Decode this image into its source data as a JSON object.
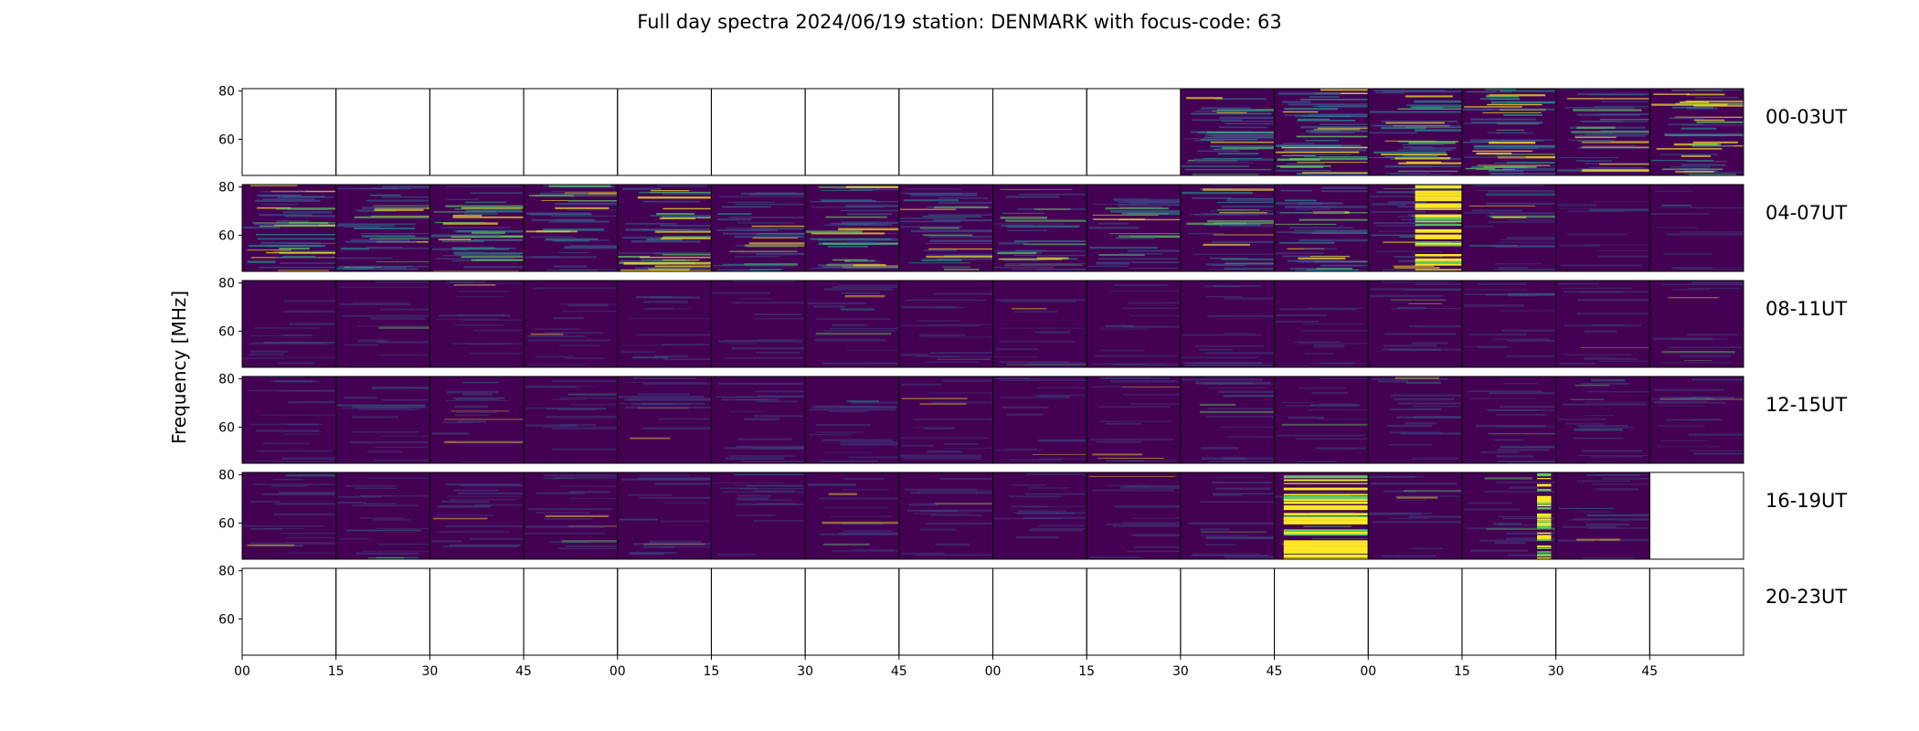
{
  "chart_data": {
    "type": "heatmap",
    "title": "Full day spectra 2024/06/19 station: DENMARK with focus-code: 63",
    "ylabel": "Frequency [MHz]",
    "xlabel": "",
    "ylim": [
      45,
      81
    ],
    "yticks": [
      60,
      80
    ],
    "xticks": [
      "00",
      "15",
      "30",
      "45",
      "00",
      "15",
      "30",
      "45",
      "00",
      "15",
      "30",
      "45",
      "00",
      "15",
      "30",
      "45"
    ],
    "colormap": [
      "#440154",
      "#3b528b",
      "#21918c",
      "#5ec962",
      "#fde725"
    ],
    "rows": [
      {
        "label": "00-03UT",
        "panels": [
          {
            "empty": true
          },
          {
            "empty": true
          },
          {
            "empty": true
          },
          {
            "empty": true
          },
          {
            "empty": true
          },
          {
            "empty": true
          },
          {
            "empty": true
          },
          {
            "empty": true
          },
          {
            "empty": true
          },
          {
            "empty": true
          },
          {
            "activity": 0.55
          },
          {
            "activity": 0.75
          },
          {
            "activity": 0.6
          },
          {
            "activity": 0.7
          },
          {
            "activity": 0.5
          },
          {
            "activity": 0.55
          }
        ]
      },
      {
        "label": "04-07UT",
        "panels": [
          {
            "activity": 0.6
          },
          {
            "activity": 0.5
          },
          {
            "activity": 0.55
          },
          {
            "activity": 0.5
          },
          {
            "activity": 0.6
          },
          {
            "activity": 0.45
          },
          {
            "activity": 0.55
          },
          {
            "activity": 0.45
          },
          {
            "activity": 0.45
          },
          {
            "activity": 0.4
          },
          {
            "activity": 0.45
          },
          {
            "activity": 0.55
          },
          {
            "activity": 0.35,
            "burst": [
              0.5,
              1.0
            ]
          },
          {
            "activity": 0.3
          },
          {
            "activity": 0.05
          },
          {
            "activity": 0.05
          }
        ]
      },
      {
        "label": "08-11UT",
        "panels": [
          {
            "activity": 0.1
          },
          {
            "activity": 0.1
          },
          {
            "activity": 0.12
          },
          {
            "activity": 0.1
          },
          {
            "activity": 0.1
          },
          {
            "activity": 0.1
          },
          {
            "activity": 0.15
          },
          {
            "activity": 0.12
          },
          {
            "activity": 0.1
          },
          {
            "activity": 0.1
          },
          {
            "activity": 0.12
          },
          {
            "activity": 0.12
          },
          {
            "activity": 0.12
          },
          {
            "activity": 0.12
          },
          {
            "activity": 0.12
          },
          {
            "activity": 0.1
          }
        ]
      },
      {
        "label": "12-15UT",
        "panels": [
          {
            "activity": 0.14
          },
          {
            "activity": 0.14
          },
          {
            "activity": 0.16
          },
          {
            "activity": 0.14
          },
          {
            "activity": 0.14
          },
          {
            "activity": 0.16
          },
          {
            "activity": 0.14
          },
          {
            "activity": 0.14
          },
          {
            "activity": 0.14
          },
          {
            "activity": 0.14
          },
          {
            "activity": 0.16
          },
          {
            "activity": 0.14
          },
          {
            "activity": 0.16
          },
          {
            "activity": 0.16
          },
          {
            "activity": 0.16
          },
          {
            "activity": 0.2
          }
        ]
      },
      {
        "label": "16-19UT",
        "panels": [
          {
            "activity": 0.16
          },
          {
            "activity": 0.16
          },
          {
            "activity": 0.16
          },
          {
            "activity": 0.16
          },
          {
            "activity": 0.16
          },
          {
            "activity": 0.14
          },
          {
            "activity": 0.14
          },
          {
            "activity": 0.14
          },
          {
            "activity": 0.14
          },
          {
            "activity": 0.14
          },
          {
            "activity": 0.16
          },
          {
            "activity": 0.2,
            "burst": [
              0.1,
              1.0
            ]
          },
          {
            "activity": 0.16
          },
          {
            "activity": 0.16,
            "burst": [
              0.8,
              0.95
            ]
          },
          {
            "activity": 0.16
          },
          {
            "empty": true
          }
        ]
      },
      {
        "label": "20-23UT",
        "panels": [
          {
            "empty": true
          },
          {
            "empty": true
          },
          {
            "empty": true
          },
          {
            "empty": true
          },
          {
            "empty": true
          },
          {
            "empty": true
          },
          {
            "empty": true
          },
          {
            "empty": true
          },
          {
            "empty": true
          },
          {
            "empty": true
          },
          {
            "empty": true
          },
          {
            "empty": true
          },
          {
            "empty": true
          },
          {
            "empty": true
          },
          {
            "empty": true
          },
          {
            "empty": true
          }
        ]
      }
    ]
  }
}
